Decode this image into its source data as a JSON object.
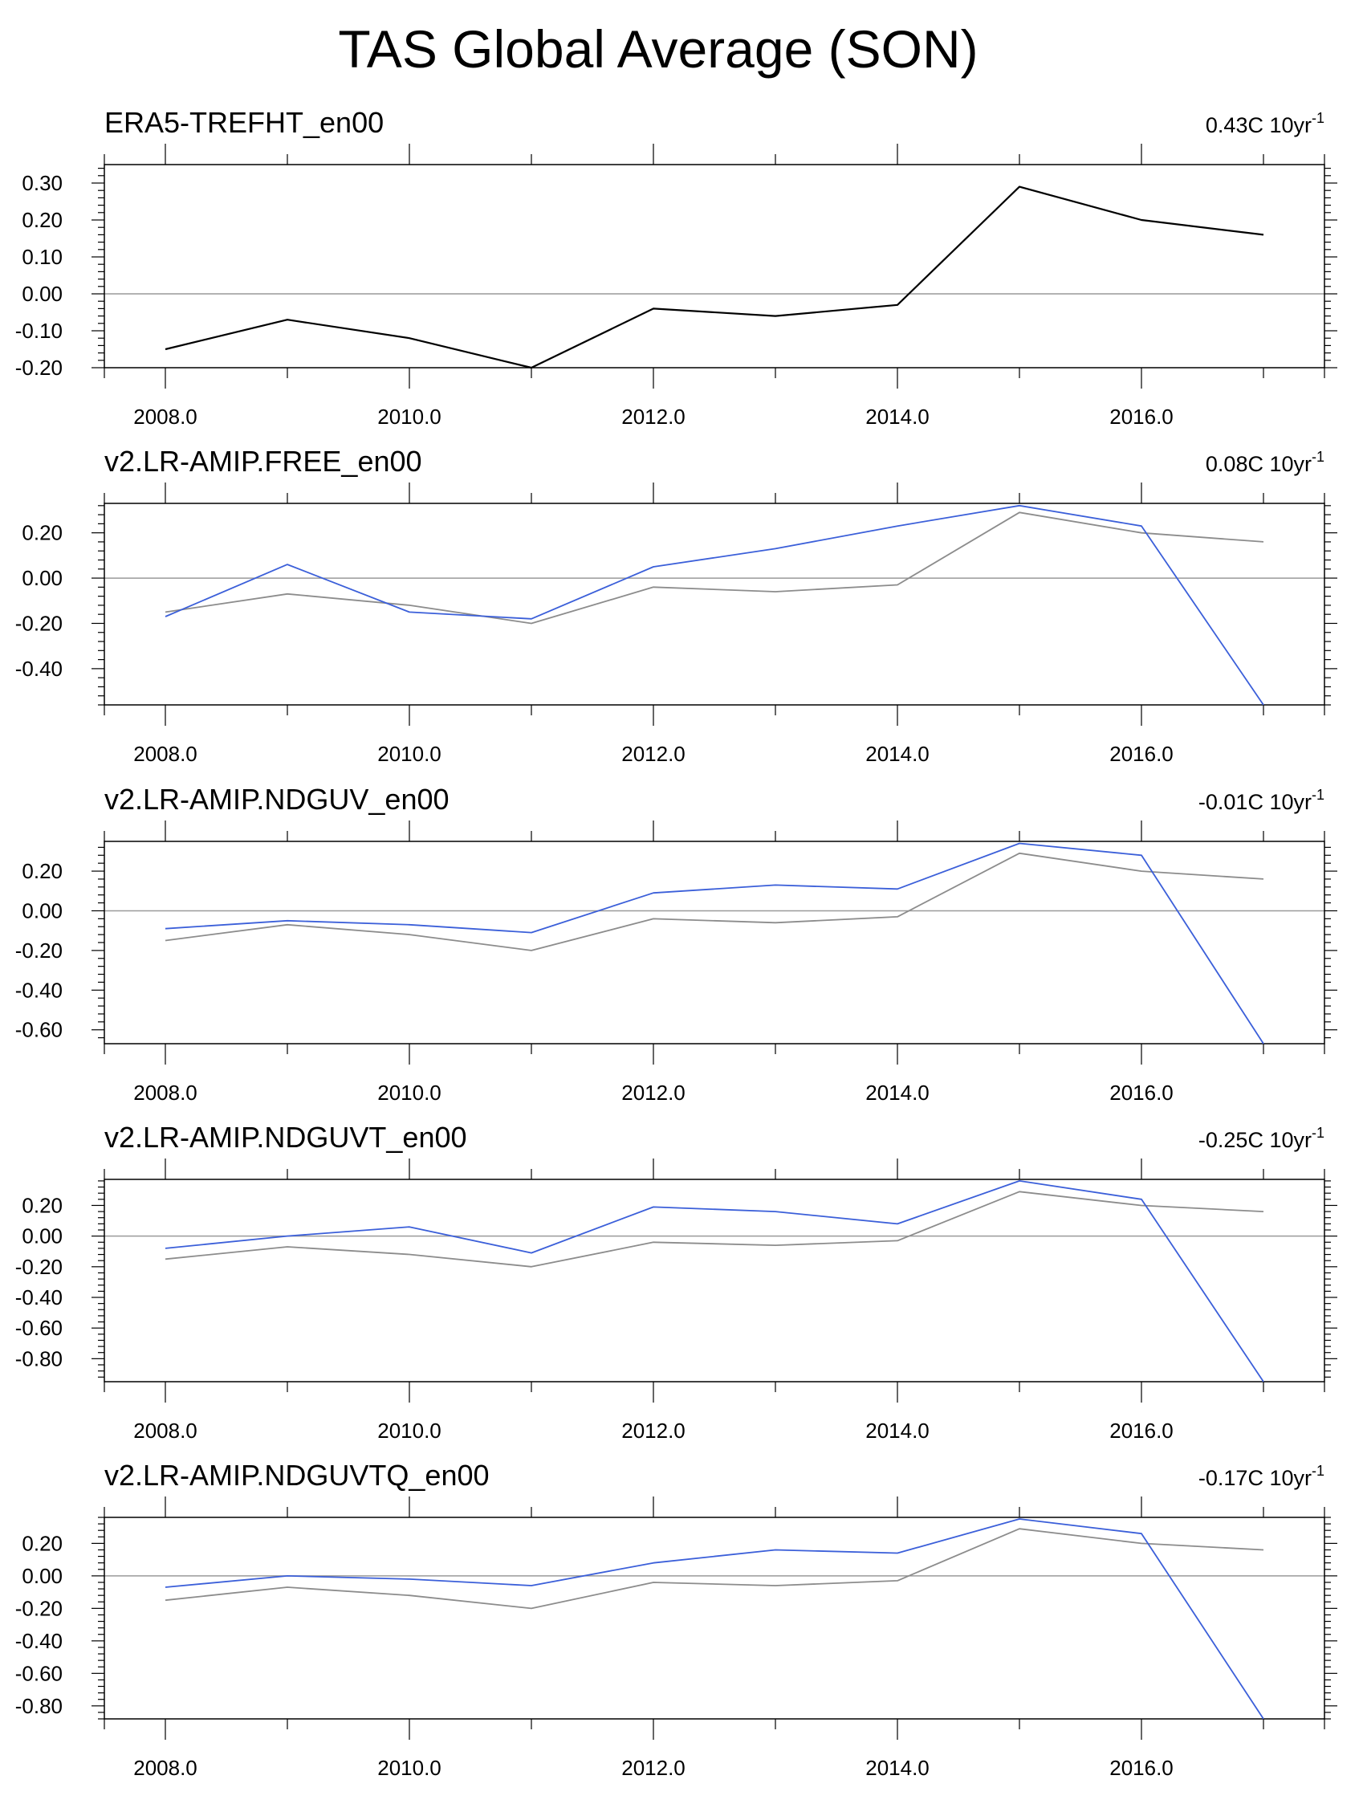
{
  "page_title": "TAS Global Average (SON)",
  "colors": {
    "reference": "#000000",
    "reference_overlay": "#8c8c8c",
    "model": "#3b5fd9",
    "zero_line": "#9a9a9a",
    "axis": "#000000"
  },
  "chart_data": [
    {
      "type": "line",
      "title": "ERA5-TREFHT_en00",
      "trend_value": "0.43C 10yr",
      "trend_exp": "-1",
      "xlim": [
        2007.5,
        2017.5
      ],
      "ylim": [
        -0.2,
        0.35
      ],
      "xticks": [
        2008,
        2010,
        2012,
        2014,
        2016
      ],
      "xtick_labels": [
        "2008.0",
        "2010.0",
        "2012.0",
        "2014.0",
        "2016.0"
      ],
      "yticks": [
        0.3,
        0.2,
        0.1,
        0.0,
        -0.1,
        -0.2
      ],
      "ytick_labels": [
        "0.30",
        "0.20",
        "0.10",
        "0.00",
        "-0.10",
        "-0.20"
      ],
      "x": [
        2008,
        2009,
        2010,
        2011,
        2012,
        2013,
        2014,
        2015,
        2016,
        2017
      ],
      "series": [
        {
          "name": "ERA5-TREFHT_en00",
          "role": "reference",
          "values": [
            -0.15,
            -0.07,
            -0.12,
            -0.2,
            -0.04,
            -0.06,
            -0.03,
            0.29,
            0.2,
            0.16
          ]
        }
      ]
    },
    {
      "type": "line",
      "title": "v2.LR-AMIP.FREE_en00",
      "trend_value": "0.08C 10yr",
      "trend_exp": "-1",
      "xlim": [
        2007.5,
        2017.5
      ],
      "ylim": [
        -0.56,
        0.33
      ],
      "xticks": [
        2008,
        2010,
        2012,
        2014,
        2016
      ],
      "xtick_labels": [
        "2008.0",
        "2010.0",
        "2012.0",
        "2014.0",
        "2016.0"
      ],
      "yticks": [
        0.2,
        0.0,
        -0.2,
        -0.4
      ],
      "ytick_labels": [
        "0.20",
        "0.00",
        "-0.20",
        "-0.40"
      ],
      "x": [
        2008,
        2009,
        2010,
        2011,
        2012,
        2013,
        2014,
        2015,
        2016,
        2017
      ],
      "series": [
        {
          "name": "ERA5-TREFHT_en00",
          "role": "reference_overlay",
          "values": [
            -0.15,
            -0.07,
            -0.12,
            -0.2,
            -0.04,
            -0.06,
            -0.03,
            0.29,
            0.2,
            0.16
          ]
        },
        {
          "name": "v2.LR-AMIP.FREE_en00",
          "role": "model",
          "values": [
            -0.17,
            0.06,
            -0.15,
            -0.18,
            0.05,
            0.13,
            0.23,
            0.32,
            0.23,
            -0.56
          ]
        }
      ]
    },
    {
      "type": "line",
      "title": "v2.LR-AMIP.NDGUV_en00",
      "trend_value": "-0.01C 10yr",
      "trend_exp": "-1",
      "xlim": [
        2007.5,
        2017.5
      ],
      "ylim": [
        -0.67,
        0.35
      ],
      "xticks": [
        2008,
        2010,
        2012,
        2014,
        2016
      ],
      "xtick_labels": [
        "2008.0",
        "2010.0",
        "2012.0",
        "2014.0",
        "2016.0"
      ],
      "yticks": [
        0.2,
        0.0,
        -0.2,
        -0.4,
        -0.6
      ],
      "ytick_labels": [
        "0.20",
        "0.00",
        "-0.20",
        "-0.40",
        "-0.60"
      ],
      "x": [
        2008,
        2009,
        2010,
        2011,
        2012,
        2013,
        2014,
        2015,
        2016,
        2017
      ],
      "series": [
        {
          "name": "ERA5-TREFHT_en00",
          "role": "reference_overlay",
          "values": [
            -0.15,
            -0.07,
            -0.12,
            -0.2,
            -0.04,
            -0.06,
            -0.03,
            0.29,
            0.2,
            0.16
          ]
        },
        {
          "name": "v2.LR-AMIP.NDGUV_en00",
          "role": "model",
          "values": [
            -0.09,
            -0.05,
            -0.07,
            -0.11,
            0.09,
            0.13,
            0.11,
            0.34,
            0.28,
            -0.67
          ]
        }
      ]
    },
    {
      "type": "line",
      "title": "v2.LR-AMIP.NDGUVT_en00",
      "trend_value": "-0.25C 10yr",
      "trend_exp": "-1",
      "xlim": [
        2007.5,
        2017.5
      ],
      "ylim": [
        -0.95,
        0.37
      ],
      "xticks": [
        2008,
        2010,
        2012,
        2014,
        2016
      ],
      "xtick_labels": [
        "2008.0",
        "2010.0",
        "2012.0",
        "2014.0",
        "2016.0"
      ],
      "yticks": [
        0.2,
        0.0,
        -0.2,
        -0.4,
        -0.6,
        -0.8
      ],
      "ytick_labels": [
        "0.20",
        "0.00",
        "-0.20",
        "-0.40",
        "-0.60",
        "-0.80"
      ],
      "x": [
        2008,
        2009,
        2010,
        2011,
        2012,
        2013,
        2014,
        2015,
        2016,
        2017
      ],
      "series": [
        {
          "name": "ERA5-TREFHT_en00",
          "role": "reference_overlay",
          "values": [
            -0.15,
            -0.07,
            -0.12,
            -0.2,
            -0.04,
            -0.06,
            -0.03,
            0.29,
            0.2,
            0.16
          ]
        },
        {
          "name": "v2.LR-AMIP.NDGUVT_en00",
          "role": "model",
          "values": [
            -0.08,
            0.0,
            0.06,
            -0.11,
            0.19,
            0.16,
            0.08,
            0.36,
            0.24,
            -0.95
          ]
        }
      ]
    },
    {
      "type": "line",
      "title": "v2.LR-AMIP.NDGUVTQ_en00",
      "trend_value": "-0.17C 10yr",
      "trend_exp": "-1",
      "xlim": [
        2007.5,
        2017.5
      ],
      "ylim": [
        -0.88,
        0.36
      ],
      "xticks": [
        2008,
        2010,
        2012,
        2014,
        2016
      ],
      "xtick_labels": [
        "2008.0",
        "2010.0",
        "2012.0",
        "2014.0",
        "2016.0"
      ],
      "yticks": [
        0.2,
        0.0,
        -0.2,
        -0.4,
        -0.6,
        -0.8
      ],
      "ytick_labels": [
        "0.20",
        "0.00",
        "-0.20",
        "-0.40",
        "-0.60",
        "-0.80"
      ],
      "x": [
        2008,
        2009,
        2010,
        2011,
        2012,
        2013,
        2014,
        2015,
        2016,
        2017
      ],
      "series": [
        {
          "name": "ERA5-TREFHT_en00",
          "role": "reference_overlay",
          "values": [
            -0.15,
            -0.07,
            -0.12,
            -0.2,
            -0.04,
            -0.06,
            -0.03,
            0.29,
            0.2,
            0.16
          ]
        },
        {
          "name": "v2.LR-AMIP.NDGUVTQ_en00",
          "role": "model",
          "values": [
            -0.07,
            0.0,
            -0.02,
            -0.06,
            0.08,
            0.16,
            0.14,
            0.35,
            0.26,
            -0.88
          ]
        }
      ]
    }
  ]
}
